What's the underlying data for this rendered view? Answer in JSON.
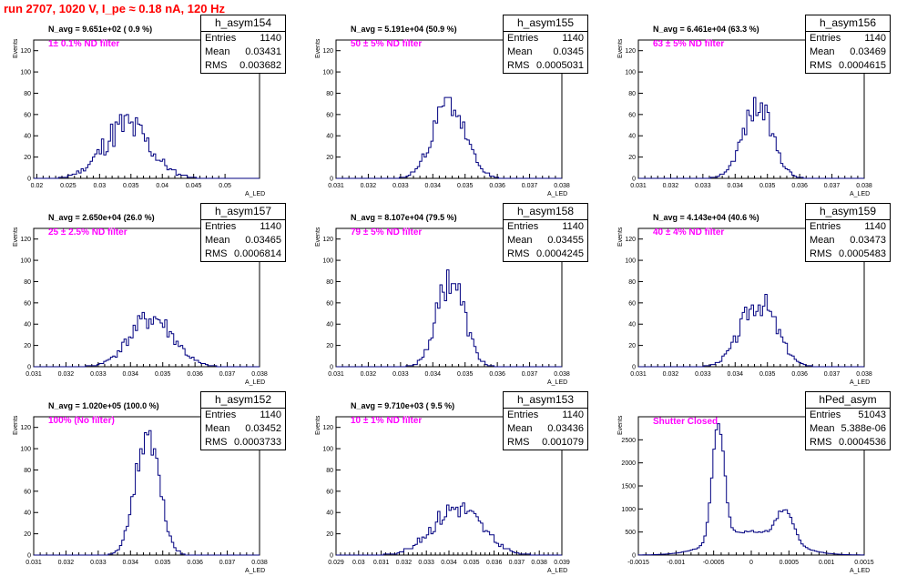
{
  "run_title": "run 2707,  1020 V, I_pe ≈ 0.18 nA, 120 Hz",
  "y_axis_label": "Events",
  "x_axis_label": "A_LED",
  "chart_data": [
    {
      "type": "histogram",
      "name": "h_asym154",
      "n_avg": "N_avg = 9.651e+02 ( 0.9 %)",
      "filter": "1± 0.1% ND filter",
      "stats": {
        "entries": "1140",
        "mean": "0.03431",
        "rms": "0.003682"
      },
      "xlim": [
        0.0195,
        0.0555
      ],
      "ylim": [
        0,
        130
      ],
      "xticks": [
        0.02,
        0.025,
        0.03,
        0.035,
        0.04,
        0.045,
        0.05
      ],
      "xtick_labels": [
        "0.02",
        "0.025",
        "0.03",
        "0.035",
        "0.04",
        "0.045",
        "0.05"
      ],
      "yticks": [
        0,
        20,
        40,
        60,
        80,
        100,
        120
      ],
      "bin_edges_range": [
        0.0195,
        0.0555
      ],
      "nbins": 100,
      "peaks": [
        {
          "mu": 0.0343,
          "sigma": 0.0037,
          "amp": 38
        }
      ],
      "max_bin": 60,
      "noise": 0.35,
      "seed": 11
    },
    {
      "type": "histogram",
      "name": "h_asym155",
      "n_avg": "N_avg = 5.191e+04 (50.9 %)",
      "filter": "50 ± 5% ND filter",
      "stats": {
        "entries": "1140",
        "mean": "0.0345",
        "rms": "0.0005031"
      },
      "xlim": [
        0.031,
        0.038
      ],
      "ylim": [
        0,
        130
      ],
      "xticks": [
        0.031,
        0.032,
        0.033,
        0.034,
        0.035,
        0.036,
        0.037,
        0.038
      ],
      "xtick_labels": [
        "0.031",
        "0.032",
        "0.033",
        "0.034",
        "0.035",
        "0.036",
        "0.037",
        "0.038"
      ],
      "yticks": [
        0,
        20,
        40,
        60,
        80,
        100,
        120
      ],
      "bin_edges_range": [
        0.031,
        0.038
      ],
      "nbins": 100,
      "peaks": [
        {
          "mu": 0.0345,
          "sigma": 0.0005,
          "amp": 62
        }
      ],
      "max_bin": 76,
      "noise": 0.2,
      "seed": 23
    },
    {
      "type": "histogram",
      "name": "h_asym156",
      "n_avg": "N_avg = 6.461e+04 (63.3 %)",
      "filter": "63 ± 5% ND filter",
      "stats": {
        "entries": "1140",
        "mean": "0.03469",
        "rms": "0.0004615"
      },
      "xlim": [
        0.031,
        0.038
      ],
      "ylim": [
        0,
        130
      ],
      "xticks": [
        0.031,
        0.032,
        0.033,
        0.034,
        0.035,
        0.036,
        0.037,
        0.038
      ],
      "xtick_labels": [
        "0.031",
        "0.032",
        "0.033",
        "0.034",
        "0.035",
        "0.036",
        "0.037",
        "0.038"
      ],
      "yticks": [
        0,
        20,
        40,
        60,
        80,
        100,
        120
      ],
      "bin_edges_range": [
        0.031,
        0.038
      ],
      "nbins": 100,
      "peaks": [
        {
          "mu": 0.03469,
          "sigma": 0.00046,
          "amp": 66
        }
      ],
      "max_bin": 76,
      "noise": 0.2,
      "seed": 37
    },
    {
      "type": "histogram",
      "name": "h_asym157",
      "n_avg": "N_avg = 2.650e+04 (26.0 %)",
      "filter": "25 ± 2.5% ND filter",
      "stats": {
        "entries": "1140",
        "mean": "0.03465",
        "rms": "0.0006814"
      },
      "xlim": [
        0.031,
        0.038
      ],
      "ylim": [
        0,
        130
      ],
      "xticks": [
        0.031,
        0.032,
        0.033,
        0.034,
        0.035,
        0.036,
        0.037,
        0.038
      ],
      "xtick_labels": [
        "0.031",
        "0.032",
        "0.033",
        "0.034",
        "0.035",
        "0.036",
        "0.037",
        "0.038"
      ],
      "yticks": [
        0,
        20,
        40,
        60,
        80,
        100,
        120
      ],
      "bin_edges_range": [
        0.031,
        0.038
      ],
      "nbins": 100,
      "peaks": [
        {
          "mu": 0.03465,
          "sigma": 0.00068,
          "amp": 44
        }
      ],
      "max_bin": 51,
      "noise": 0.25,
      "seed": 41
    },
    {
      "type": "histogram",
      "name": "h_asym158",
      "n_avg": "N_avg = 8.107e+04 (79.5 %)",
      "filter": "79 ± 5% ND filter",
      "stats": {
        "entries": "1140",
        "mean": "0.03455",
        "rms": "0.0004245"
      },
      "xlim": [
        0.031,
        0.038
      ],
      "ylim": [
        0,
        130
      ],
      "xticks": [
        0.031,
        0.032,
        0.033,
        0.034,
        0.035,
        0.036,
        0.037,
        0.038
      ],
      "xtick_labels": [
        "0.031",
        "0.032",
        "0.033",
        "0.034",
        "0.035",
        "0.036",
        "0.037",
        "0.038"
      ],
      "yticks": [
        0,
        20,
        40,
        60,
        80,
        100,
        120
      ],
      "bin_edges_range": [
        0.031,
        0.038
      ],
      "nbins": 100,
      "peaks": [
        {
          "mu": 0.03455,
          "sigma": 0.00042,
          "amp": 72
        }
      ],
      "max_bin": 91,
      "noise": 0.22,
      "seed": 53
    },
    {
      "type": "histogram",
      "name": "h_asym159",
      "n_avg": "N_avg = 4.143e+04 (40.6 %)",
      "filter": "40 ± 4% ND filter",
      "stats": {
        "entries": "1140",
        "mean": "0.03473",
        "rms": "0.0005483"
      },
      "xlim": [
        0.031,
        0.038
      ],
      "ylim": [
        0,
        130
      ],
      "xticks": [
        0.031,
        0.032,
        0.033,
        0.034,
        0.035,
        0.036,
        0.037,
        0.038
      ],
      "xtick_labels": [
        "0.031",
        "0.032",
        "0.033",
        "0.034",
        "0.035",
        "0.036",
        "0.037",
        "0.038"
      ],
      "yticks": [
        0,
        20,
        40,
        60,
        80,
        100,
        120
      ],
      "bin_edges_range": [
        0.031,
        0.038
      ],
      "nbins": 100,
      "peaks": [
        {
          "mu": 0.03473,
          "sigma": 0.00055,
          "amp": 58
        }
      ],
      "max_bin": 68,
      "noise": 0.22,
      "seed": 67
    },
    {
      "type": "histogram",
      "name": "h_asym152",
      "n_avg": "N_avg = 1.020e+05 (100.0 %)",
      "filter": "100% (No filter)",
      "stats": {
        "entries": "1140",
        "mean": "0.03452",
        "rms": "0.0003733"
      },
      "xlim": [
        0.031,
        0.038
      ],
      "ylim": [
        0,
        130
      ],
      "xticks": [
        0.031,
        0.032,
        0.033,
        0.034,
        0.035,
        0.036,
        0.037,
        0.038
      ],
      "xtick_labels": [
        "0.031",
        "0.032",
        "0.033",
        "0.034",
        "0.035",
        "0.036",
        "0.037",
        "0.038"
      ],
      "yticks": [
        0,
        20,
        40,
        60,
        80,
        100,
        120
      ],
      "bin_edges_range": [
        0.031,
        0.038
      ],
      "nbins": 100,
      "peaks": [
        {
          "mu": 0.03452,
          "sigma": 0.00037,
          "amp": 92
        }
      ],
      "max_bin": 117,
      "noise": 0.18,
      "seed": 71
    },
    {
      "type": "histogram",
      "name": "h_asym153",
      "n_avg": "N_avg = 9.710e+03 ( 9.5 %)",
      "filter": "10 ± 1% ND filter",
      "stats": {
        "entries": "1140",
        "mean": "0.03436",
        "rms": "0.001079"
      },
      "xlim": [
        0.029,
        0.039
      ],
      "ylim": [
        0,
        130
      ],
      "xticks": [
        0.029,
        0.03,
        0.031,
        0.032,
        0.033,
        0.034,
        0.035,
        0.036,
        0.037,
        0.038,
        0.039
      ],
      "xtick_labels": [
        "0.029",
        "0.03",
        "0.031",
        "0.032",
        "0.033",
        "0.034",
        "0.035",
        "0.036",
        "0.037",
        "0.038",
        "0.039"
      ],
      "yticks": [
        0,
        20,
        40,
        60,
        80,
        100,
        120
      ],
      "bin_edges_range": [
        0.029,
        0.039
      ],
      "nbins": 100,
      "peaks": [
        {
          "mu": 0.03436,
          "sigma": 0.00108,
          "amp": 40
        }
      ],
      "max_bin": 49,
      "noise": 0.25,
      "seed": 83
    },
    {
      "type": "histogram",
      "name": "hPed_asym",
      "n_avg": "",
      "filter": "Shutter Closed",
      "stats": {
        "entries": "51043",
        "mean": "5.388e-06",
        "rms": "0.0004536"
      },
      "xlim": [
        -0.0015,
        0.0015
      ],
      "ylim": [
        0,
        3000
      ],
      "xticks": [
        -0.0015,
        -0.001,
        -0.0005,
        0,
        0.0005,
        0.001,
        0.0015
      ],
      "xtick_labels": [
        "-0.0015",
        "-0.001",
        "-0.0005",
        "0",
        "0.0005",
        "0.001",
        "0.0015"
      ],
      "yticks": [
        0,
        500,
        1000,
        1500,
        2000,
        2500
      ],
      "bin_edges_range": [
        -0.0015,
        0.0015
      ],
      "nbins": 100,
      "peaks": [
        {
          "mu": -0.00044,
          "sigma": 8e-05,
          "amp": 2600
        },
        {
          "mu": 0.00045,
          "sigma": 0.00011,
          "amp": 700
        },
        {
          "mu": 0.0,
          "sigma": 0.00045,
          "amp": 520
        }
      ],
      "max_bin": 2850,
      "noise": 0.05,
      "seed": 97
    }
  ]
}
